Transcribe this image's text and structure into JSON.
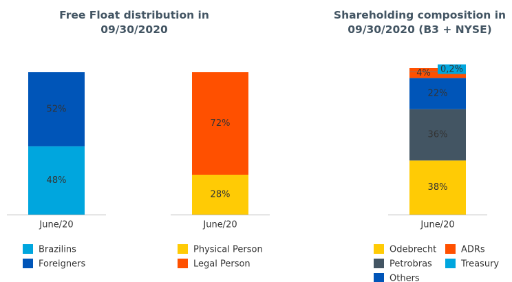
{
  "chart_data": [
    {
      "type": "bar",
      "stacked": true,
      "title": "Free Float distribution in 09/30/2020",
      "categories": [
        "June/20"
      ],
      "ylim": [
        0,
        100
      ],
      "series": [
        {
          "name": "Brazilins",
          "color": "#00a6de",
          "values": [
            48
          ],
          "value_labels": [
            "48%"
          ]
        },
        {
          "name": "Foreigners",
          "color": "#0055b8",
          "values": [
            52
          ],
          "value_labels": [
            "52%"
          ]
        }
      ]
    },
    {
      "type": "bar",
      "stacked": true,
      "categories": [
        "June/20"
      ],
      "ylim": [
        0,
        100
      ],
      "series": [
        {
          "name": "Physical Person",
          "color": "#ffcb05",
          "values": [
            28
          ],
          "value_labels": [
            "28%"
          ]
        },
        {
          "name": "Legal Person",
          "color": "#ff5000",
          "values": [
            72
          ],
          "value_labels": [
            "72%"
          ]
        }
      ]
    },
    {
      "type": "bar",
      "stacked": true,
      "title": "Shareholding composition in 09/30/2020 (B3 + NYSE)",
      "categories": [
        "June/20"
      ],
      "ylim": [
        0,
        100
      ],
      "series": [
        {
          "name": "Odebrecht",
          "color": "#ffcb05",
          "values": [
            38
          ],
          "value_labels": [
            "38%"
          ]
        },
        {
          "name": "Petrobras",
          "color": "#435563",
          "values": [
            36
          ],
          "value_labels": [
            "36%"
          ]
        },
        {
          "name": "Others",
          "color": "#0055b8",
          "values": [
            22
          ],
          "value_labels": [
            "22%"
          ]
        },
        {
          "name": "ADRs",
          "color": "#ff5000",
          "values": [
            4
          ],
          "value_labels": [
            "4%"
          ]
        },
        {
          "name": "Treasury",
          "color": "#00a6de",
          "values": [
            0.2
          ],
          "value_labels": [
            "0,2%"
          ]
        }
      ]
    }
  ]
}
